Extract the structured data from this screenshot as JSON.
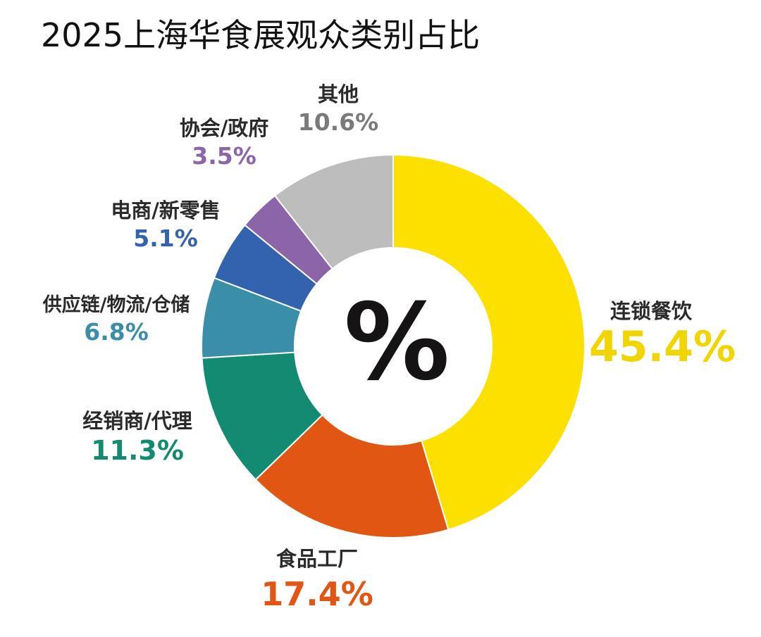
{
  "chart_data": {
    "type": "pie",
    "title": "2025上海华食展观众类别占比",
    "center_label": "%",
    "slices": [
      {
        "name": "连锁餐饮",
        "value": 45.4,
        "label": "45.4%",
        "color": "#FCE000"
      },
      {
        "name": "食品工厂",
        "value": 17.4,
        "label": "17.4%",
        "color": "#E05612"
      },
      {
        "name": "经销商/代理",
        "value": 11.3,
        "label": "11.3%",
        "color": "#138B72"
      },
      {
        "name": "供应链/物流/仓储",
        "value": 6.8,
        "label": "6.8%",
        "color": "#3A8EA8"
      },
      {
        "name": "电商/新零售",
        "value": 5.1,
        "label": "5.1%",
        "color": "#3362AE"
      },
      {
        "name": "协会/政府",
        "value": 3.5,
        "label": "3.5%",
        "color": "#8C65A9"
      },
      {
        "name": "其他",
        "value": 10.6,
        "label": "10.6%",
        "color": "#BDBDBD"
      }
    ],
    "label_colors": {
      "连锁餐饮": "#F0D500",
      "食品工厂": "#E05612",
      "经销商/代理": "#138B72",
      "供应链/物流/仓储": "#3A8EA8",
      "电商/新零售": "#3362AE",
      "协会/政府": "#8C65A9",
      "其他": "#7A7A7A"
    }
  }
}
